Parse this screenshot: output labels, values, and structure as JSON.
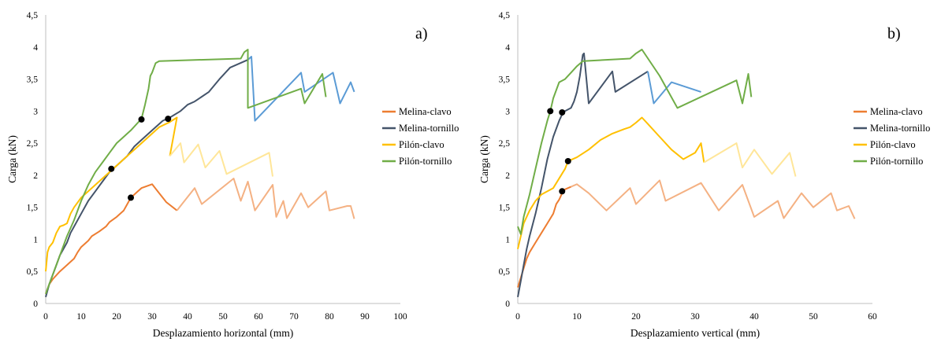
{
  "chart_data": [
    {
      "type": "line",
      "panel_label": "a)",
      "xlabel": "Desplazamiento horizontal (mm)",
      "ylabel": "Carga (kN)",
      "xlim": [
        0,
        100
      ],
      "ylim": [
        0,
        4.5
      ],
      "x_ticks": [
        "0",
        "10",
        "20",
        "30",
        "40",
        "50",
        "60",
        "70",
        "80",
        "90",
        "100"
      ],
      "y_ticks": [
        "0",
        "0,5",
        "1",
        "1,5",
        "2",
        "2,5",
        "3",
        "3,5",
        "4",
        "4,5"
      ],
      "legend_position": "right",
      "series": [
        {
          "name": "Melina-clavo",
          "color": "#ED7D31",
          "fade_color": "#F4B183",
          "fade_from_index": 23,
          "points": [
            [
              0,
              0.15
            ],
            [
              1,
              0.3
            ],
            [
              2,
              0.38
            ],
            [
              4,
              0.5
            ],
            [
              6,
              0.6
            ],
            [
              8,
              0.7
            ],
            [
              9,
              0.8
            ],
            [
              10,
              0.88
            ],
            [
              12,
              0.98
            ],
            [
              13,
              1.05
            ],
            [
              15,
              1.12
            ],
            [
              17,
              1.2
            ],
            [
              18,
              1.27
            ],
            [
              20,
              1.35
            ],
            [
              22,
              1.45
            ],
            [
              23,
              1.55
            ],
            [
              24,
              1.65
            ],
            [
              26,
              1.75
            ],
            [
              27,
              1.8
            ],
            [
              29,
              1.84
            ],
            [
              30,
              1.86
            ],
            [
              32,
              1.72
            ],
            [
              34,
              1.58
            ],
            [
              37,
              1.45
            ],
            [
              42,
              1.8
            ],
            [
              44,
              1.55
            ],
            [
              53,
              1.95
            ],
            [
              55,
              1.6
            ],
            [
              57,
              1.9
            ],
            [
              59,
              1.45
            ],
            [
              64,
              1.85
            ],
            [
              65,
              1.35
            ],
            [
              67,
              1.6
            ],
            [
              68,
              1.33
            ],
            [
              72,
              1.72
            ],
            [
              74,
              1.5
            ],
            [
              79,
              1.75
            ],
            [
              80,
              1.45
            ],
            [
              85,
              1.52
            ],
            [
              86,
              1.52
            ],
            [
              87,
              1.32
            ]
          ]
        },
        {
          "name": "Melina-tornillo",
          "color": "#44546A",
          "fade_color": "#5B9BD5",
          "fade_from_index": 28,
          "points": [
            [
              0,
              0.1
            ],
            [
              1,
              0.3
            ],
            [
              2,
              0.45
            ],
            [
              3,
              0.6
            ],
            [
              4,
              0.75
            ],
            [
              5,
              0.85
            ],
            [
              6,
              0.95
            ],
            [
              7,
              1.1
            ],
            [
              8,
              1.2
            ],
            [
              10,
              1.4
            ],
            [
              12,
              1.6
            ],
            [
              14,
              1.75
            ],
            [
              16,
              1.9
            ],
            [
              18,
              2.05
            ],
            [
              19,
              2.1
            ],
            [
              21,
              2.2
            ],
            [
              23,
              2.3
            ],
            [
              25,
              2.45
            ],
            [
              27,
              2.55
            ],
            [
              30,
              2.7
            ],
            [
              33,
              2.85
            ],
            [
              35,
              2.9
            ],
            [
              38,
              3.0
            ],
            [
              40,
              3.1
            ],
            [
              42,
              3.15
            ],
            [
              46,
              3.3
            ],
            [
              49,
              3.5
            ],
            [
              52,
              3.68
            ],
            [
              57,
              3.8
            ],
            [
              58,
              3.85
            ],
            [
              59,
              2.85
            ],
            [
              72,
              3.6
            ],
            [
              73,
              3.3
            ],
            [
              81,
              3.6
            ],
            [
              83,
              3.12
            ],
            [
              86,
              3.45
            ],
            [
              87,
              3.3
            ]
          ]
        },
        {
          "name": "Pilón-clavo",
          "color": "#FFC000",
          "fade_color": "#FFE699",
          "fade_from_index": 22,
          "points": [
            [
              0,
              0.5
            ],
            [
              0.5,
              0.8
            ],
            [
              1,
              0.88
            ],
            [
              2,
              0.95
            ],
            [
              3,
              1.1
            ],
            [
              4,
              1.2
            ],
            [
              5,
              1.22
            ],
            [
              6,
              1.25
            ],
            [
              7,
              1.4
            ],
            [
              8,
              1.5
            ],
            [
              10,
              1.65
            ],
            [
              12,
              1.75
            ],
            [
              14,
              1.85
            ],
            [
              16,
              1.95
            ],
            [
              19,
              2.1
            ],
            [
              21,
              2.2
            ],
            [
              23,
              2.3
            ],
            [
              26,
              2.45
            ],
            [
              29,
              2.6
            ],
            [
              32,
              2.75
            ],
            [
              35,
              2.83
            ],
            [
              37,
              2.9
            ],
            [
              35,
              2.3
            ],
            [
              38,
              2.5
            ],
            [
              39,
              2.2
            ],
            [
              43,
              2.48
            ],
            [
              45,
              2.12
            ],
            [
              49,
              2.38
            ],
            [
              51,
              2.02
            ],
            [
              63,
              2.35
            ],
            [
              64,
              1.98
            ]
          ]
        },
        {
          "name": "Pilón-tornillo",
          "color": "#70AD47",
          "fade_color": "#70AD47",
          "fade_from_index": 99,
          "points": [
            [
              0,
              0.15
            ],
            [
              1,
              0.3
            ],
            [
              2,
              0.45
            ],
            [
              3,
              0.6
            ],
            [
              4,
              0.75
            ],
            [
              5,
              0.9
            ],
            [
              6,
              1.05
            ],
            [
              8,
              1.3
            ],
            [
              10,
              1.6
            ],
            [
              12,
              1.85
            ],
            [
              14,
              2.05
            ],
            [
              16,
              2.2
            ],
            [
              18,
              2.35
            ],
            [
              20,
              2.5
            ],
            [
              22,
              2.6
            ],
            [
              24,
              2.7
            ],
            [
              26,
              2.82
            ],
            [
              27,
              2.88
            ],
            [
              28,
              3.1
            ],
            [
              29,
              3.35
            ],
            [
              29.5,
              3.55
            ],
            [
              30,
              3.6
            ],
            [
              31,
              3.75
            ],
            [
              32,
              3.78
            ],
            [
              55,
              3.82
            ],
            [
              56,
              3.92
            ],
            [
              57,
              3.96
            ],
            [
              57,
              3.05
            ],
            [
              72,
              3.35
            ],
            [
              73,
              3.12
            ],
            [
              78,
              3.58
            ],
            [
              79,
              3.22
            ]
          ]
        }
      ],
      "markers": [
        [
          24,
          1.65
        ],
        [
          18.5,
          2.1
        ],
        [
          27,
          2.87
        ],
        [
          34.5,
          2.88
        ]
      ]
    },
    {
      "type": "line",
      "panel_label": "b)",
      "xlabel": "Desplazamiento vertical (mm)",
      "ylabel": "Carga (kN)",
      "xlim": [
        0,
        60
      ],
      "ylim": [
        0,
        4.5
      ],
      "x_ticks": [
        "0",
        "10",
        "20",
        "30",
        "40",
        "50",
        "60"
      ],
      "y_ticks": [
        "0",
        "0,5",
        "1",
        "1,5",
        "2",
        "2,5",
        "3",
        "3,5",
        "4",
        "4,5"
      ],
      "legend_position": "right",
      "series": [
        {
          "name": "Melina-clavo",
          "color": "#ED7D31",
          "fade_color": "#F4B183",
          "fade_from_index": 13,
          "points": [
            [
              0,
              0.25
            ],
            [
              0.5,
              0.4
            ],
            [
              1,
              0.55
            ],
            [
              1.5,
              0.7
            ],
            [
              2,
              0.8
            ],
            [
              3,
              0.95
            ],
            [
              4,
              1.1
            ],
            [
              5,
              1.25
            ],
            [
              6,
              1.4
            ],
            [
              6.5,
              1.55
            ],
            [
              7,
              1.62
            ],
            [
              7.5,
              1.72
            ],
            [
              8,
              1.78
            ],
            [
              9,
              1.82
            ],
            [
              10,
              1.86
            ],
            [
              12,
              1.72
            ],
            [
              15,
              1.45
            ],
            [
              19,
              1.8
            ],
            [
              20,
              1.55
            ],
            [
              24,
              1.92
            ],
            [
              25,
              1.6
            ],
            [
              31,
              1.88
            ],
            [
              34,
              1.45
            ],
            [
              38,
              1.85
            ],
            [
              40,
              1.35
            ],
            [
              44,
              1.6
            ],
            [
              45,
              1.33
            ],
            [
              48,
              1.72
            ],
            [
              50,
              1.5
            ],
            [
              53,
              1.72
            ],
            [
              54,
              1.45
            ],
            [
              56,
              1.52
            ],
            [
              57,
              1.32
            ]
          ]
        },
        {
          "name": "Melina-tornillo",
          "color": "#44546A",
          "fade_color": "#5B9BD5",
          "fade_from_index": 22,
          "points": [
            [
              0,
              0.1
            ],
            [
              0.5,
              0.35
            ],
            [
              1,
              0.6
            ],
            [
              1.5,
              0.85
            ],
            [
              2,
              1.05
            ],
            [
              3,
              1.4
            ],
            [
              4,
              1.8
            ],
            [
              5,
              2.25
            ],
            [
              6,
              2.6
            ],
            [
              7,
              2.85
            ],
            [
              7.5,
              2.95
            ],
            [
              8,
              3.0
            ],
            [
              9,
              3.05
            ],
            [
              9.5,
              3.15
            ],
            [
              10,
              3.3
            ],
            [
              10.5,
              3.55
            ],
            [
              10.8,
              3.75
            ],
            [
              11,
              3.88
            ],
            [
              11.2,
              3.9
            ],
            [
              12,
              3.12
            ],
            [
              16,
              3.62
            ],
            [
              16.5,
              3.3
            ],
            [
              22,
              3.62
            ],
            [
              23,
              3.12
            ],
            [
              26,
              3.45
            ],
            [
              31,
              3.3
            ]
          ]
        },
        {
          "name": "Pilón-clavo",
          "color": "#FFC000",
          "fade_color": "#FFE699",
          "fade_from_index": 23,
          "points": [
            [
              0,
              0.85
            ],
            [
              0.5,
              1.05
            ],
            [
              1,
              1.25
            ],
            [
              2,
              1.45
            ],
            [
              3,
              1.6
            ],
            [
              4,
              1.7
            ],
            [
              6,
              1.8
            ],
            [
              8,
              2.1
            ],
            [
              8.5,
              2.22
            ],
            [
              10,
              2.28
            ],
            [
              12,
              2.4
            ],
            [
              14,
              2.55
            ],
            [
              16,
              2.65
            ],
            [
              18,
              2.72
            ],
            [
              19,
              2.75
            ],
            [
              20,
              2.82
            ],
            [
              21,
              2.9
            ],
            [
              22,
              2.8
            ],
            [
              24,
              2.6
            ],
            [
              26,
              2.4
            ],
            [
              28,
              2.25
            ],
            [
              30,
              2.35
            ],
            [
              31,
              2.5
            ],
            [
              31.5,
              2.2
            ],
            [
              37,
              2.5
            ],
            [
              38,
              2.12
            ],
            [
              40,
              2.4
            ],
            [
              43,
              2.02
            ],
            [
              46,
              2.35
            ],
            [
              47,
              1.98
            ]
          ]
        },
        {
          "name": "Pilón-tornillo",
          "color": "#70AD47",
          "fade_color": "#70AD47",
          "fade_from_index": 99,
          "points": [
            [
              0,
              1.2
            ],
            [
              0.5,
              1.08
            ],
            [
              1,
              1.35
            ],
            [
              2,
              1.7
            ],
            [
              3,
              2.1
            ],
            [
              4,
              2.5
            ],
            [
              5,
              2.85
            ],
            [
              5.5,
              3.0
            ],
            [
              6,
              3.2
            ],
            [
              7,
              3.45
            ],
            [
              8,
              3.5
            ],
            [
              9,
              3.6
            ],
            [
              10,
              3.7
            ],
            [
              11,
              3.78
            ],
            [
              19,
              3.82
            ],
            [
              20,
              3.9
            ],
            [
              21,
              3.96
            ],
            [
              24,
              3.55
            ],
            [
              27,
              3.05
            ],
            [
              37,
              3.48
            ],
            [
              38,
              3.12
            ],
            [
              39,
              3.58
            ],
            [
              39.5,
              3.22
            ]
          ]
        }
      ],
      "markers": [
        [
          7.5,
          1.75
        ],
        [
          8.5,
          2.22
        ],
        [
          5.5,
          3.0
        ],
        [
          7.5,
          2.98
        ]
      ]
    }
  ]
}
